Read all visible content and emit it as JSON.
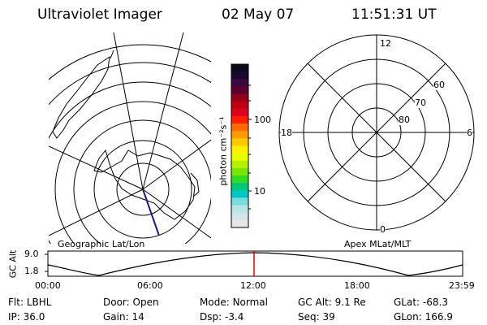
{
  "header": {
    "instrument": "Ultraviolet Imager",
    "date": "02 May 07",
    "time": "11:51:31 UT"
  },
  "colorbar": {
    "unit_label": "photon cm⁻²s⁻¹",
    "ticks": [
      "100",
      "10"
    ],
    "colors_top_to_bottom": [
      "#0a0a1e",
      "#1a0830",
      "#3a0840",
      "#5c0030",
      "#900018",
      "#c00010",
      "#e00020",
      "#ff1e00",
      "#ff6a00",
      "#ff9a00",
      "#ffc800",
      "#fff000",
      "#e6ff00",
      "#b4f000",
      "#78e600",
      "#30dc20",
      "#00c878",
      "#00c8c8",
      "#78dcdc",
      "#b4e6e6",
      "#d2e6e6",
      "#e6e6e6"
    ]
  },
  "geo_map": {
    "caption": "Geographic Lat/Lon"
  },
  "polar_map": {
    "caption": "Apex MLat/MLT",
    "mlt_labels": {
      "top": "12",
      "left": "18",
      "right": "6",
      "bottom": "0"
    },
    "lat_labels": [
      "60",
      "70",
      "80"
    ]
  },
  "timeline": {
    "ylabel": "GC Alt",
    "y_ticks": [
      "9.0",
      "1.8"
    ],
    "x_ticks": [
      "00:00",
      "06:00",
      "12:00",
      "18:00",
      "23:59"
    ],
    "current_marker_time": "11:51",
    "colors": {
      "marker": "#e00000"
    }
  },
  "status": {
    "row1": [
      {
        "label": "Flt:",
        "value": "LBHL"
      },
      {
        "label": "Door:",
        "value": "Open"
      },
      {
        "label": "Mode:",
        "value": "Normal"
      },
      {
        "label": "GC Alt:",
        "value": "9.1 Re"
      },
      {
        "label": "GLat:",
        "value": "-68.3"
      }
    ],
    "row2": [
      {
        "label": "IP:",
        "value": "36.0"
      },
      {
        "label": "Gain:",
        "value": "14"
      },
      {
        "label": "Dsp:",
        "value": "-3.4"
      },
      {
        "label": "Seq:",
        "value": "39"
      },
      {
        "label": "GLon:",
        "value": "166.9"
      }
    ]
  }
}
